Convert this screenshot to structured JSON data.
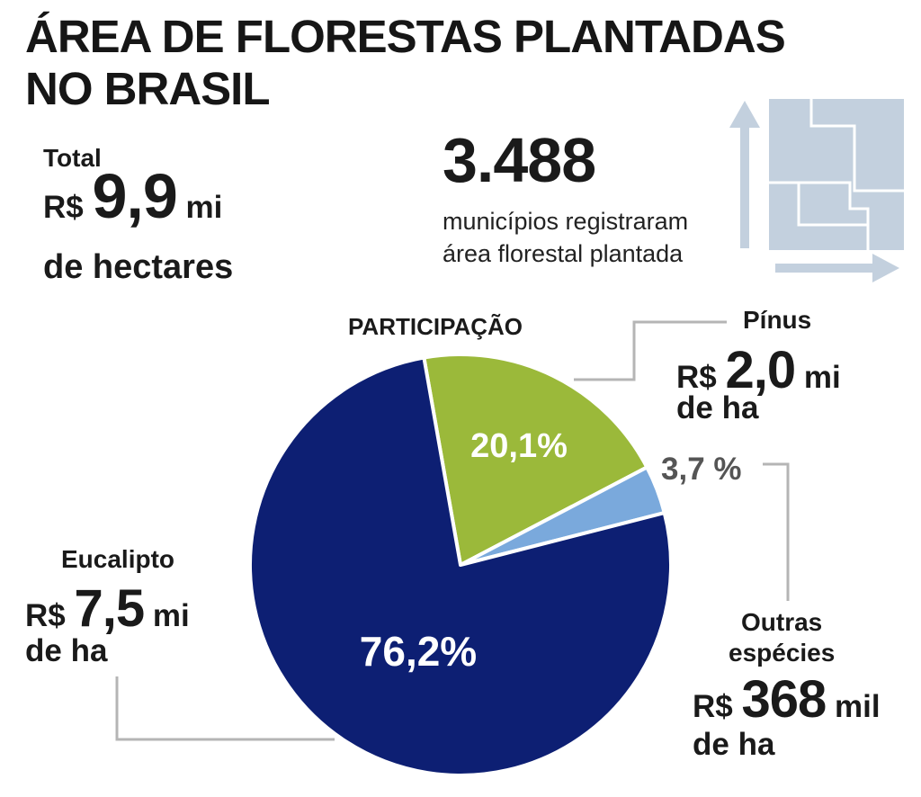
{
  "header": {
    "title_line1": "ÁREA DE FLORESTAS PLANTADAS",
    "title_line2": "NO BRASIL"
  },
  "total": {
    "label": "Total",
    "prefix": "R$",
    "value": "9,9",
    "suffix": "mi",
    "unit": "de hectares"
  },
  "municipios": {
    "count": "3.488",
    "line1": "municípios registraram",
    "line2": "área florestal plantada"
  },
  "participacao_label": "PARTICIPAÇÃO",
  "slices": {
    "pinus": {
      "name": "Pínus",
      "prefix": "R$",
      "value": "2,0",
      "suffix": "mi",
      "unit": "de ha",
      "pct_label": "20,1%"
    },
    "outras": {
      "name_line1": "Outras",
      "name_line2": "espécies",
      "prefix": "R$",
      "value": "368",
      "suffix": "mil",
      "unit": "de ha",
      "pct_label": "3,7 %"
    },
    "eucalipto": {
      "name": "Eucalipto",
      "prefix": "R$",
      "value": "7,5",
      "suffix": "mi",
      "unit": "de ha",
      "pct_label": "76,2%"
    }
  },
  "colors": {
    "pinus": "#9bb93a",
    "outras": "#7aa9dc",
    "eucalipto": "#0d1f73",
    "leader_line": "#b5b5b5",
    "map_icon": "#c3d0de"
  },
  "icon": "brazil-map-area-icon",
  "chart_data": {
    "type": "pie",
    "title": "PARTICIPAÇÃO",
    "categories": [
      "Pínus",
      "Outras espécies",
      "Eucalipto"
    ],
    "values": [
      20.1,
      3.7,
      76.2
    ],
    "unit": "%",
    "legend": "none"
  }
}
